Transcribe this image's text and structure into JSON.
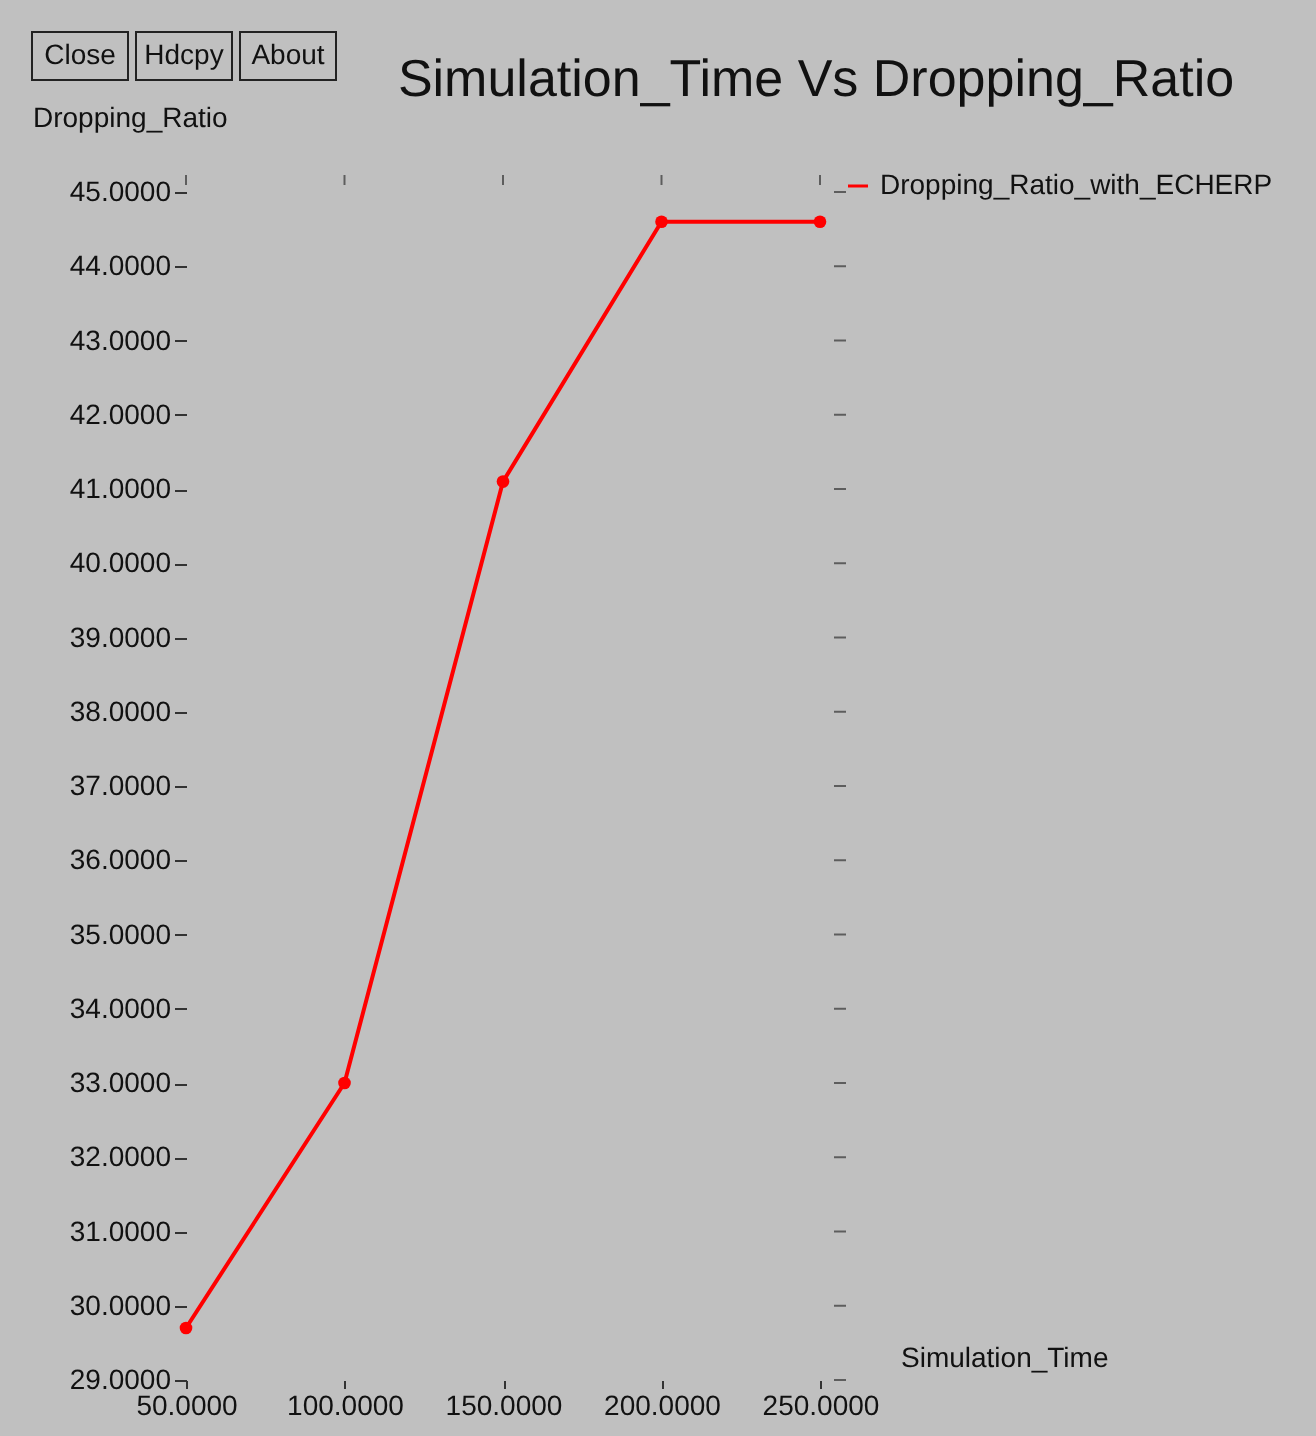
{
  "chart_data": {
    "type": "line",
    "title": "Simulation_Time Vs Dropping_Ratio",
    "xlabel": "Simulation_Time",
    "ylabel": "Dropping_Ratio",
    "annotations": [
      "Close",
      "Hdcpy",
      "About"
    ],
    "x": [
      50,
      100,
      150,
      200,
      250
    ],
    "series": [
      {
        "name": "Dropping_Ratio_with_ECHERP",
        "color": "#ff0000",
        "values": [
          29.7,
          33.0,
          41.1,
          44.6,
          44.6
        ]
      }
    ],
    "xlim": [
      50,
      250
    ],
    "ylim": [
      29,
      45
    ],
    "xticks": [
      {
        "value": 50,
        "label": "50.0000"
      },
      {
        "value": 100,
        "label": "100.0000"
      },
      {
        "value": 150,
        "label": "150.0000"
      },
      {
        "value": 200,
        "label": "200.0000"
      },
      {
        "value": 250,
        "label": "250.0000"
      }
    ],
    "yticks": [
      {
        "value": 29,
        "label": "29.0000"
      },
      {
        "value": 30,
        "label": "30.0000"
      },
      {
        "value": 31,
        "label": "31.0000"
      },
      {
        "value": 32,
        "label": "32.0000"
      },
      {
        "value": 33,
        "label": "33.0000"
      },
      {
        "value": 34,
        "label": "34.0000"
      },
      {
        "value": 35,
        "label": "35.0000"
      },
      {
        "value": 36,
        "label": "36.0000"
      },
      {
        "value": 37,
        "label": "37.0000"
      },
      {
        "value": 38,
        "label": "38.0000"
      },
      {
        "value": 39,
        "label": "39.0000"
      },
      {
        "value": 40,
        "label": "40.0000"
      },
      {
        "value": 41,
        "label": "41.0000"
      },
      {
        "value": 42,
        "label": "42.0000"
      },
      {
        "value": 43,
        "label": "43.0000"
      },
      {
        "value": 44,
        "label": "44.0000"
      },
      {
        "value": 45,
        "label": "45.0000"
      }
    ],
    "grid": false,
    "legend": "top right",
    "marker": "circle",
    "line_style": "solid"
  }
}
